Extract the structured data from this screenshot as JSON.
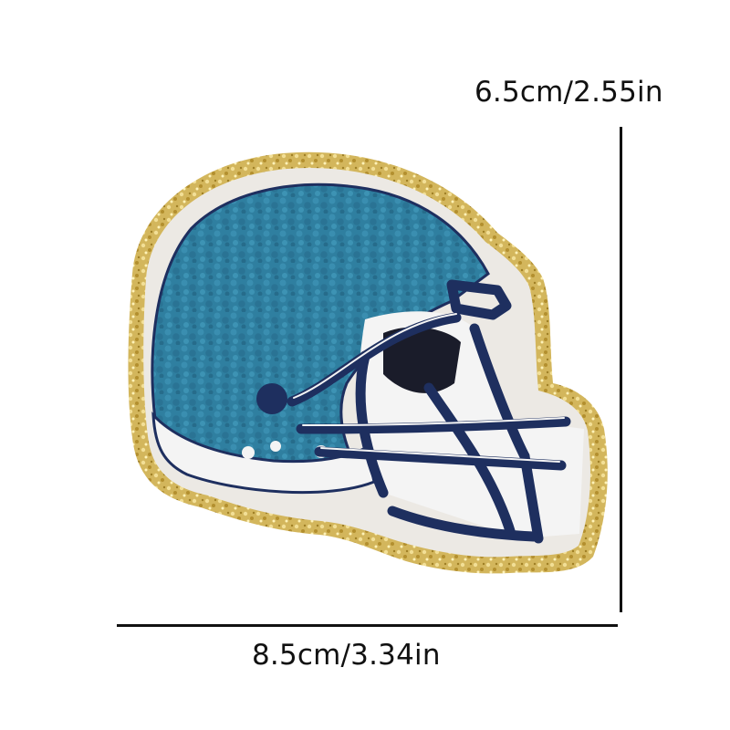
{
  "product": {
    "name": "football helmet chenille patch",
    "colors": {
      "background": "#ffffff",
      "glitter_border": "#d4b861",
      "felt_backing": "#ece9e4",
      "chenille_blue": "#2f7fa0",
      "navy_outline": "#1e2f5f",
      "white_stitch": "#f4f4f4"
    }
  },
  "dimensions": {
    "height_label": "6.5cm/2.55in",
    "width_label": "8.5cm/3.34in"
  }
}
